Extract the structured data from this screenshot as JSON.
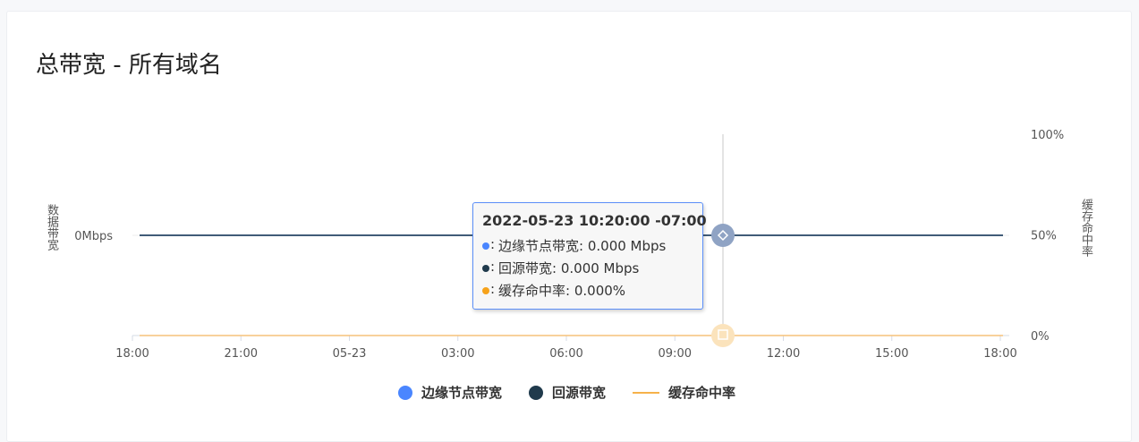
{
  "title": "总带宽 - 所有域名",
  "chart_data": {
    "type": "line",
    "title": "总带宽 - 所有域名",
    "x_ticks": [
      "18:00",
      "21:00",
      "05-23",
      "03:00",
      "06:00",
      "09:00",
      "12:00",
      "15:00",
      "18:00"
    ],
    "x_range": [
      "2022-05-22 18:00",
      "2022-05-23 18:00"
    ],
    "y_left": {
      "label": "数据带宽",
      "ticks": [
        "0Mbps"
      ]
    },
    "y_right": {
      "label": "缓存命中率",
      "ticks": [
        "0%",
        "50%",
        "100%"
      ],
      "range": [
        0,
        100
      ]
    },
    "series": [
      {
        "name": "边缘节点带宽",
        "axis": "left",
        "unit": "Mbps",
        "color": "#4a86ff",
        "values": [
          0,
          0
        ]
      },
      {
        "name": "回源带宽",
        "axis": "left",
        "unit": "Mbps",
        "color": "#203a4c",
        "values": [
          0,
          0
        ]
      },
      {
        "name": "缓存命中率",
        "axis": "right",
        "unit": "%",
        "color": "#f6b24a",
        "values": [
          0,
          0
        ]
      }
    ],
    "legend": "bottom",
    "tooltip": {
      "title": "2022-05-23 10:20:00 -07:00",
      "rows": [
        {
          "label": "边缘节点带宽",
          "value": "0.000 Mbps",
          "color": "#4a86ff"
        },
        {
          "label": "回源带宽",
          "value": "0.000 Mbps",
          "color": "#203a4c"
        },
        {
          "label": "缓存命中率",
          "value": "0.000%",
          "color": "#f6a21a"
        }
      ]
    }
  }
}
